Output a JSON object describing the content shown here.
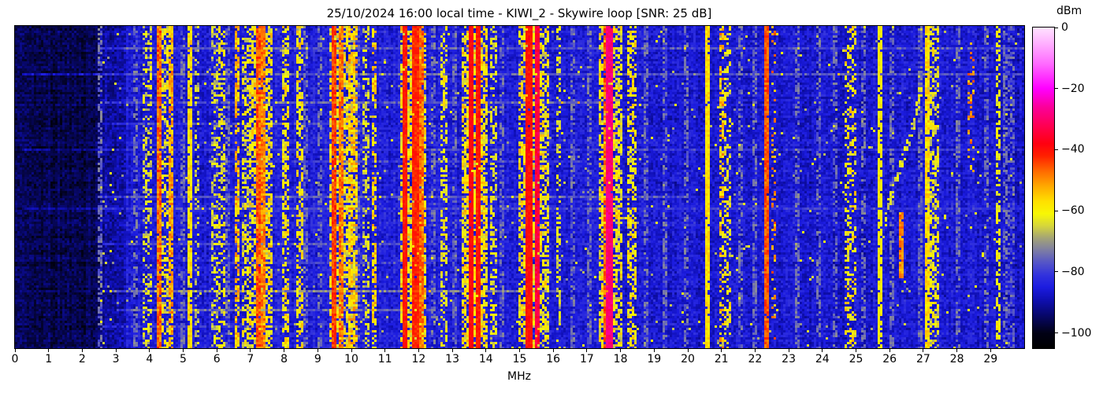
{
  "chart_data": {
    "type": "heatmap",
    "subtype": "hf-radio-spectrogram-waterfall",
    "title": "25/10/2024 16:00 local time - KIWI_2 - Skywire loop [SNR: 25 dB]",
    "xlabel": "MHz",
    "xlim": [
      0,
      30
    ],
    "x_ticks": [
      "0",
      "1",
      "2",
      "3",
      "4",
      "5",
      "6",
      "7",
      "8",
      "9",
      "10",
      "11",
      "12",
      "13",
      "14",
      "15",
      "16",
      "17",
      "18",
      "19",
      "20",
      "21",
      "22",
      "23",
      "24",
      "25",
      "26",
      "27",
      "28",
      "29"
    ],
    "y_axis": "time (waterfall rows, no tick labels shown)",
    "grid": false,
    "colorbar": {
      "label": "dBm",
      "vmax": 0,
      "vmin": -105,
      "ticks": [
        {
          "v": 0,
          "label": "0"
        },
        {
          "v": -20,
          "label": "−20"
        },
        {
          "v": -40,
          "label": "−40"
        },
        {
          "v": -60,
          "label": "−60"
        },
        {
          "v": -80,
          "label": "−80"
        },
        {
          "v": -100,
          "label": "−100"
        }
      ]
    },
    "colormap": [
      [
        -105,
        "#000000"
      ],
      [
        -100,
        "#020216"
      ],
      [
        -94,
        "#08086e"
      ],
      [
        -89,
        "#1010b4"
      ],
      [
        -85,
        "#1c1ce0"
      ],
      [
        -81,
        "#3333dd"
      ],
      [
        -77,
        "#5555c8"
      ],
      [
        -73,
        "#7d7da5"
      ],
      [
        -69,
        "#a3a378"
      ],
      [
        -65,
        "#d6d63c"
      ],
      [
        -61,
        "#f8f805"
      ],
      [
        -57,
        "#ffe100"
      ],
      [
        -52,
        "#ffaa00"
      ],
      [
        -47,
        "#ff6a00"
      ],
      [
        -42,
        "#ff2000"
      ],
      [
        -38,
        "#ff0010"
      ],
      [
        -32,
        "#ff0055"
      ],
      [
        -26,
        "#fb009b"
      ],
      [
        -20,
        "#ff00ff"
      ],
      [
        -12,
        "#ff6aff"
      ],
      [
        -5,
        "#ffb3ff"
      ],
      [
        0,
        "#ffe3ff"
      ]
    ],
    "noise_floor": {
      "dark_end": 2.55,
      "dark_dbm": -96,
      "trans_end": 3.3,
      "trans_dbm": -90,
      "base_dbm": -87,
      "mid_hump": {
        "center": 11.5,
        "sigma": 7,
        "amp": 2.5
      },
      "high_hump": {
        "center": 27.3,
        "sigma": 1.2,
        "amp": 1.5
      }
    },
    "signal_bands": [
      {
        "f": 4.26,
        "w": 0.08,
        "dbm": -47,
        "p": 0.97,
        "j": 6
      },
      {
        "f": 4.65,
        "w": 0.07,
        "dbm": -52,
        "p": 0.8,
        "j": 6
      },
      {
        "f": 5.21,
        "w": 0.07,
        "dbm": -57,
        "p": 0.9,
        "j": 4
      },
      {
        "f": 6.6,
        "w": 0.07,
        "dbm": -54,
        "p": 0.7,
        "j": 6
      },
      {
        "f": 7.21,
        "w": 0.08,
        "dbm": -46,
        "p": 0.95,
        "j": 5
      },
      {
        "f": 7.36,
        "w": 0.07,
        "dbm": -49,
        "p": 0.9,
        "j": 5
      },
      {
        "f": 9.51,
        "w": 0.08,
        "dbm": -44,
        "p": 0.97,
        "j": 4
      },
      {
        "f": 9.7,
        "w": 0.07,
        "dbm": -48,
        "p": 0.9,
        "j": 5
      },
      {
        "f": 11.62,
        "w": 0.08,
        "dbm": -41,
        "p": 0.98,
        "j": 3
      },
      {
        "f": 11.91,
        "w": 0.08,
        "dbm": -42,
        "p": 0.98,
        "j": 3
      },
      {
        "f": 12.08,
        "w": 0.07,
        "dbm": -47,
        "p": 0.9,
        "j": 5
      },
      {
        "f": 13.58,
        "w": 0.08,
        "dbm": -39,
        "p": 0.98,
        "j": 3
      },
      {
        "f": 13.75,
        "w": 0.08,
        "dbm": -41,
        "p": 0.98,
        "j": 3
      },
      {
        "f": 15.28,
        "w": 0.08,
        "dbm": -40,
        "p": 0.98,
        "j": 3
      },
      {
        "f": 15.53,
        "w": 0.08,
        "dbm": -34,
        "p": 0.98,
        "j": 3
      },
      {
        "f": 17.56,
        "w": 0.06,
        "dbm": -47,
        "p": 0.85,
        "j": 5
      },
      {
        "f": 17.67,
        "w": 0.09,
        "dbm": -29,
        "p": 0.98,
        "j": 3
      },
      {
        "f": 20.62,
        "w": 0.07,
        "dbm": -57,
        "p": 0.95,
        "j": 3
      },
      {
        "f": 22.36,
        "w": 0.07,
        "dbm": -46,
        "p": 0.97,
        "j": 4
      },
      {
        "f": 25.7,
        "w": 0.06,
        "dbm": -59,
        "p": 0.85,
        "j": 3
      },
      {
        "f": 26.37,
        "w": 0.07,
        "dbm": -50,
        "p": 0.9,
        "j": 5,
        "t0": 0.58,
        "t1": 0.78
      },
      {
        "f": 27.12,
        "w": 0.1,
        "dbm": -57,
        "p": 0.85,
        "j": 4
      },
      {
        "f": 3.95,
        "w": 0.2,
        "dbm": -64,
        "p": 0.4,
        "j": 7
      },
      {
        "f": 4.45,
        "w": 0.1,
        "dbm": -62,
        "p": 0.45,
        "j": 7
      },
      {
        "f": 5.42,
        "w": 0.12,
        "dbm": -67,
        "p": 0.4,
        "j": 6
      },
      {
        "f": 5.92,
        "w": 0.15,
        "dbm": -65,
        "p": 0.4,
        "j": 6
      },
      {
        "f": 6.12,
        "w": 0.15,
        "dbm": -61,
        "p": 0.45,
        "j": 7
      },
      {
        "f": 6.87,
        "w": 0.12,
        "dbm": -62,
        "p": 0.5,
        "j": 7
      },
      {
        "f": 7.32,
        "w": 0.66,
        "dbm": -60,
        "p": 0.6,
        "j": 8
      },
      {
        "f": 8.05,
        "w": 0.16,
        "dbm": -59,
        "p": 0.5,
        "j": 7
      },
      {
        "f": 8.46,
        "w": 0.1,
        "dbm": -59,
        "p": 0.5,
        "j": 7
      },
      {
        "f": 9.7,
        "w": 0.7,
        "dbm": -61,
        "p": 0.6,
        "j": 8
      },
      {
        "f": 10.05,
        "w": 0.16,
        "dbm": -55,
        "p": 0.55,
        "j": 7
      },
      {
        "f": 10.45,
        "w": 0.12,
        "dbm": -65,
        "p": 0.4,
        "j": 6
      },
      {
        "f": 10.68,
        "w": 0.08,
        "dbm": -56,
        "p": 0.6,
        "j": 6
      },
      {
        "f": 11.85,
        "w": 0.72,
        "dbm": -59,
        "p": 0.65,
        "j": 8
      },
      {
        "f": 12.72,
        "w": 0.14,
        "dbm": -61,
        "p": 0.45,
        "j": 6
      },
      {
        "f": 13.65,
        "w": 0.72,
        "dbm": -59,
        "p": 0.65,
        "j": 8
      },
      {
        "f": 14.22,
        "w": 0.14,
        "dbm": -62,
        "p": 0.45,
        "j": 6
      },
      {
        "f": 15.42,
        "w": 0.86,
        "dbm": -60,
        "p": 0.6,
        "j": 8
      },
      {
        "f": 16.15,
        "w": 0.12,
        "dbm": -63,
        "p": 0.4,
        "j": 6
      },
      {
        "f": 17.72,
        "w": 0.64,
        "dbm": -60,
        "p": 0.6,
        "j": 8
      },
      {
        "f": 18.32,
        "w": 0.22,
        "dbm": -59,
        "p": 0.5,
        "j": 7
      },
      {
        "f": 21.02,
        "w": 0.07,
        "dbm": -52,
        "p": 0.3,
        "j": 6
      },
      {
        "f": 21.12,
        "w": 0.26,
        "dbm": -61,
        "p": 0.35,
        "j": 7
      },
      {
        "f": 22.52,
        "w": 0.07,
        "dbm": -50,
        "p": 0.2,
        "j": 6
      },
      {
        "f": 24.86,
        "w": 0.26,
        "dbm": -59,
        "p": 0.4,
        "j": 7
      },
      {
        "f": 27.3,
        "w": 0.34,
        "dbm": -62,
        "p": 0.5,
        "j": 7
      },
      {
        "f": 28.42,
        "w": 0.1,
        "dbm": -50,
        "p": 0.25,
        "j": 6,
        "t0": 0.05,
        "t1": 0.45
      },
      {
        "f": 29.2,
        "w": 0.06,
        "dbm": -61,
        "p": 0.5,
        "j": 5
      },
      {
        "f": 29.6,
        "w": 0.16,
        "dbm": -77,
        "p": 0.5,
        "j": 5
      }
    ],
    "minor_lines": {
      "dbm": -75,
      "p": 0.5,
      "freqs": [
        2.56,
        3.6,
        5.0,
        6.35,
        8.66,
        9.05,
        10.22,
        12.42,
        13.08,
        14.47,
        16.6,
        17.05,
        18.76,
        19.35,
        19.95,
        21.56,
        22.02,
        23.25,
        23.9,
        24.4,
        25.2,
        26.05,
        26.9,
        28.0,
        28.9,
        29.45
      ]
    },
    "streaks": [
      {
        "t": 0.065,
        "f0": 2.6,
        "f1": 30,
        "b": 7
      },
      {
        "t": 0.145,
        "f0": 0.2,
        "f1": 30,
        "b": 9
      },
      {
        "t": 0.235,
        "f0": 2.6,
        "f1": 18,
        "b": 8
      },
      {
        "t": 0.3,
        "f0": 2.6,
        "f1": 10.5,
        "b": 7
      },
      {
        "t": 0.38,
        "f0": 0.2,
        "f1": 30,
        "b": 5
      },
      {
        "t": 0.415,
        "f0": 6,
        "f1": 17,
        "b": 5
      },
      {
        "t": 0.525,
        "f0": 2.6,
        "f1": 20,
        "b": 8
      },
      {
        "t": 0.565,
        "f0": 0.2,
        "f1": 30,
        "b": 6
      },
      {
        "t": 0.675,
        "f0": 2.6,
        "f1": 12,
        "b": 5
      },
      {
        "t": 0.73,
        "f0": 6,
        "f1": 12.5,
        "b": 6
      },
      {
        "t": 0.815,
        "f0": 2.8,
        "f1": 16.3,
        "b": 11
      },
      {
        "t": 0.875,
        "f0": 3,
        "f1": 12.5,
        "b": 8
      },
      {
        "t": 0.93,
        "f0": 2.6,
        "f1": 8,
        "b": 6
      }
    ],
    "drift_trace": {
      "t0": 0.18,
      "t1": 0.66,
      "f_start": 26.95,
      "f_end": 25.78,
      "w": 0.06,
      "dbm": -63,
      "p": 0.55,
      "j": 5
    }
  }
}
